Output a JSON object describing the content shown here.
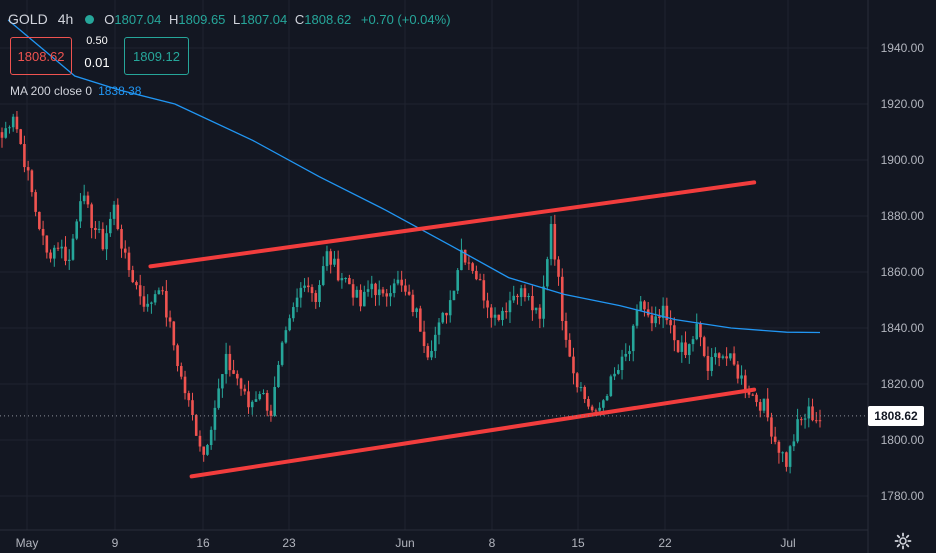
{
  "header": {
    "symbol": "GOLD",
    "interval": "4h",
    "open_label": "O",
    "open": "1807.04",
    "high_label": "H",
    "high": "1809.65",
    "low_label": "L",
    "low": "1807.04",
    "close_label": "C",
    "close": "1808.62",
    "change": "+0.70 (+0.04%)"
  },
  "trade": {
    "sell_price": "1808.62",
    "spread_top": "0.50",
    "spread_bottom": "0.01",
    "buy_price": "1809.12"
  },
  "indicator": {
    "label": "MA 200 close 0",
    "value": "1838.38"
  },
  "last_price_tag": "1808.62",
  "icons": {
    "status": "market-open-dot",
    "settings": "gear-icon"
  },
  "colors": {
    "background": "#131722",
    "up": "#26a69a",
    "down": "#ef5350",
    "ma": "#2196f3",
    "channel": "#f23d3d"
  },
  "chart_data": {
    "type": "candlestick",
    "x_ticks": [
      "May",
      "9",
      "16",
      "23",
      "Jun",
      "8",
      "15",
      "22",
      "Jul"
    ],
    "y_ticks": [
      "1940.00",
      "1920.00",
      "1900.00",
      "1880.00",
      "1860.00",
      "1840.00",
      "1820.00",
      "1800.00",
      "1780.00"
    ],
    "ylim": [
      1775,
      1955
    ],
    "grid": true,
    "series": [
      {
        "kind": "close_path",
        "values": [
          [
            0,
            1908
          ],
          [
            1,
            1917
          ],
          [
            2,
            1900
          ],
          [
            3,
            1882
          ],
          [
            4,
            1866
          ],
          [
            5,
            1870
          ],
          [
            6,
            1864
          ],
          [
            7,
            1888
          ],
          [
            8,
            1878
          ],
          [
            9,
            1870
          ],
          [
            10,
            1883
          ],
          [
            11,
            1864
          ],
          [
            12,
            1855
          ],
          [
            13,
            1847
          ],
          [
            14,
            1856
          ],
          [
            15,
            1840
          ],
          [
            16,
            1822
          ],
          [
            17,
            1808
          ],
          [
            18,
            1795
          ],
          [
            19,
            1812
          ],
          [
            20,
            1828
          ],
          [
            21,
            1822
          ],
          [
            22,
            1812
          ],
          [
            23,
            1818
          ],
          [
            24,
            1810
          ],
          [
            25,
            1832
          ],
          [
            26,
            1846
          ],
          [
            27,
            1858
          ],
          [
            28,
            1851
          ],
          [
            29,
            1866
          ],
          [
            30,
            1860
          ],
          [
            31,
            1856
          ],
          [
            32,
            1848
          ],
          [
            33,
            1856
          ],
          [
            34,
            1850
          ],
          [
            35,
            1858
          ],
          [
            36,
            1852
          ],
          [
            37,
            1845
          ],
          [
            38,
            1832
          ],
          [
            39,
            1840
          ],
          [
            40,
            1850
          ],
          [
            41,
            1868
          ],
          [
            42,
            1862
          ],
          [
            43,
            1852
          ],
          [
            44,
            1844
          ],
          [
            45,
            1848
          ],
          [
            46,
            1854
          ],
          [
            47,
            1850
          ],
          [
            48,
            1842
          ],
          [
            49,
            1878
          ],
          [
            50,
            1845
          ],
          [
            51,
            1825
          ],
          [
            52,
            1815
          ],
          [
            53,
            1808
          ],
          [
            54,
            1818
          ],
          [
            55,
            1825
          ],
          [
            56,
            1832
          ],
          [
            57,
            1850
          ],
          [
            58,
            1840
          ],
          [
            59,
            1845
          ],
          [
            60,
            1836
          ],
          [
            61,
            1830
          ],
          [
            62,
            1840
          ],
          [
            63,
            1825
          ],
          [
            64,
            1832
          ],
          [
            65,
            1828
          ],
          [
            66,
            1822
          ],
          [
            67,
            1816
          ],
          [
            68,
            1812
          ],
          [
            69,
            1800
          ],
          [
            70,
            1792
          ],
          [
            71,
            1805
          ],
          [
            72,
            1810
          ],
          [
            73,
            1807
          ]
        ]
      },
      {
        "name": "MA 200 close 0",
        "kind": "line",
        "values": [
          [
            0,
            1950
          ],
          [
            3,
            1940
          ],
          [
            6,
            1930
          ],
          [
            10,
            1925
          ],
          [
            15,
            1920
          ],
          [
            22,
            1907
          ],
          [
            28,
            1894
          ],
          [
            34,
            1882
          ],
          [
            40,
            1869
          ],
          [
            45,
            1858
          ],
          [
            50,
            1852
          ],
          [
            55,
            1848
          ],
          [
            60,
            1843
          ],
          [
            65,
            1840
          ],
          [
            70,
            1838.5
          ],
          [
            73,
            1838.38
          ]
        ]
      },
      {
        "kind": "trendline",
        "values": [
          [
            12.8,
            1862
          ],
          [
            66,
            1892
          ]
        ]
      },
      {
        "kind": "trendline",
        "values": [
          [
            16.5,
            1787
          ],
          [
            66,
            1818
          ]
        ]
      }
    ],
    "last_price": 1808.62
  }
}
